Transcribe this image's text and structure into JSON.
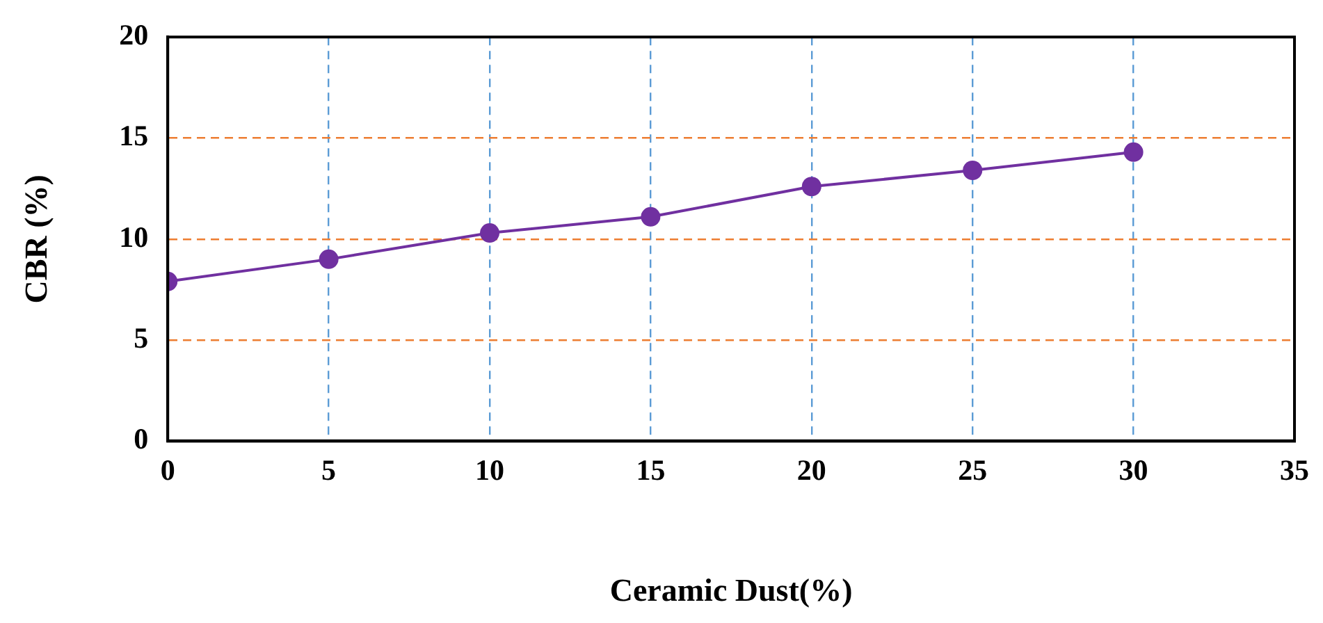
{
  "chart_data": {
    "type": "line",
    "xlabel": "Ceramic Dust(%)",
    "ylabel": "CBR (%)",
    "x": [
      0,
      5,
      10,
      15,
      20,
      25,
      30
    ],
    "series": [
      {
        "color": "#7030a0",
        "values": [
          7.9,
          9.0,
          10.3,
          11.1,
          12.6,
          13.4,
          14.3
        ]
      }
    ],
    "xlim": [
      0,
      35
    ],
    "xticks": [
      0,
      5,
      10,
      15,
      20,
      25,
      30,
      35
    ],
    "ylim": [
      0,
      20
    ],
    "yticks": [
      0,
      5,
      10,
      15,
      20
    ],
    "grid": true,
    "legend": false,
    "marker": "circle",
    "line_style": "solid"
  }
}
